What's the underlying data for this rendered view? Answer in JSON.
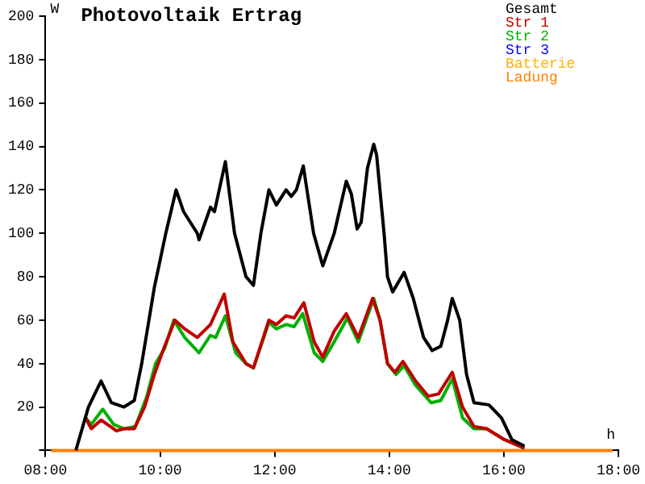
{
  "chart_data": {
    "type": "line",
    "title": "Photovoltaik Ertrag",
    "xlabel": "h",
    "ylabel": "W",
    "xlim": [
      8,
      18
    ],
    "xticks": [
      {
        "value": 8,
        "label": "08:00"
      },
      {
        "value": 10,
        "label": "10:00"
      },
      {
        "value": 12,
        "label": "12:00"
      },
      {
        "value": 14,
        "label": "14:00"
      },
      {
        "value": 16,
        "label": "16:00"
      },
      {
        "value": 18,
        "label": "18:00"
      }
    ],
    "ylim": [
      0,
      200
    ],
    "yticks": [
      {
        "value": 0,
        "label": null
      },
      20,
      40,
      60,
      80,
      100,
      120,
      140,
      160,
      180,
      200
    ],
    "grid": false,
    "legend": "top right",
    "marker": "none",
    "line_style": "solid",
    "series": [
      {
        "name": "Gesamt",
        "color": "#000000",
        "x": [
          8.53,
          8.75,
          8.97,
          9.15,
          9.37,
          9.55,
          9.68,
          9.9,
          10.1,
          10.28,
          10.41,
          10.65,
          10.68,
          10.88,
          10.95,
          11.14,
          11.3,
          11.5,
          11.63,
          11.76,
          11.9,
          12.03,
          12.2,
          12.29,
          12.38,
          12.5,
          12.68,
          12.84,
          13.04,
          13.25,
          13.34,
          13.44,
          13.51,
          13.62,
          13.73,
          13.78,
          13.91,
          13.97,
          14.06,
          14.26,
          14.42,
          14.6,
          14.75,
          14.9,
          15.02,
          15.1,
          15.23,
          15.35,
          15.48,
          15.74,
          15.96,
          16.14,
          16.36
        ],
        "values": [
          0,
          20,
          32,
          22,
          20,
          23,
          40,
          75,
          100,
          120,
          110,
          100,
          97,
          112,
          110,
          133,
          100,
          80,
          76,
          100,
          120,
          113,
          120,
          117,
          120,
          131,
          100,
          85,
          100,
          124,
          118,
          102,
          105,
          130,
          141,
          136,
          100,
          80,
          73,
          82,
          70,
          52,
          46,
          48,
          60,
          70,
          60,
          35,
          22,
          21,
          15,
          5,
          2
        ]
      },
      {
        "name": "Str 1",
        "color": "#c00000",
        "x": [
          8.7,
          8.8,
          8.97,
          9.24,
          9.37,
          9.55,
          9.73,
          9.9,
          10.08,
          10.26,
          10.43,
          10.65,
          10.88,
          11.12,
          11.27,
          11.5,
          11.63,
          11.9,
          12.03,
          12.2,
          12.34,
          12.51,
          12.69,
          12.84,
          13.04,
          13.25,
          13.46,
          13.71,
          13.84,
          13.97,
          14.1,
          14.24,
          14.46,
          14.68,
          14.86,
          15.1,
          15.28,
          15.48,
          15.7,
          16.01,
          16.36
        ],
        "values": [
          15,
          10,
          14,
          9,
          10,
          10,
          20,
          35,
          48,
          60,
          56,
          52,
          58,
          72,
          50,
          40,
          38,
          60,
          58,
          62,
          61,
          68,
          50,
          43,
          55,
          63,
          52,
          70,
          60,
          40,
          36,
          41,
          32,
          25,
          26,
          36,
          20,
          11,
          10,
          5,
          1
        ]
      },
      {
        "name": "Str 2",
        "color": "#00b000",
        "x": [
          8.7,
          8.8,
          9.0,
          9.19,
          9.37,
          9.57,
          9.77,
          9.92,
          10.08,
          10.24,
          10.43,
          10.68,
          10.88,
          10.97,
          11.14,
          11.32,
          11.5,
          11.63,
          11.9,
          12.03,
          12.2,
          12.34,
          12.49,
          12.69,
          12.84,
          13.04,
          13.27,
          13.46,
          13.73,
          13.84,
          13.97,
          14.12,
          14.26,
          14.46,
          14.73,
          14.9,
          15.1,
          15.28,
          15.48,
          15.7,
          16.01,
          16.36
        ],
        "values": [
          15,
          12,
          19,
          12,
          10,
          11,
          25,
          40,
          47,
          60,
          52,
          45,
          53,
          52,
          62,
          45,
          40,
          38,
          59,
          56,
          58,
          57,
          63,
          45,
          41,
          50,
          61,
          50,
          70,
          60,
          40,
          35,
          39,
          30,
          22,
          23,
          33,
          15,
          10,
          10,
          5,
          1
        ]
      },
      {
        "name": "Str 3",
        "color": "#0000ff"
      },
      {
        "name": "Batterie",
        "color": "#ffb000"
      },
      {
        "name": "Ladung",
        "color": "#ff8000",
        "x": [
          8.1,
          17.9
        ],
        "values": [
          0,
          0
        ]
      }
    ]
  }
}
